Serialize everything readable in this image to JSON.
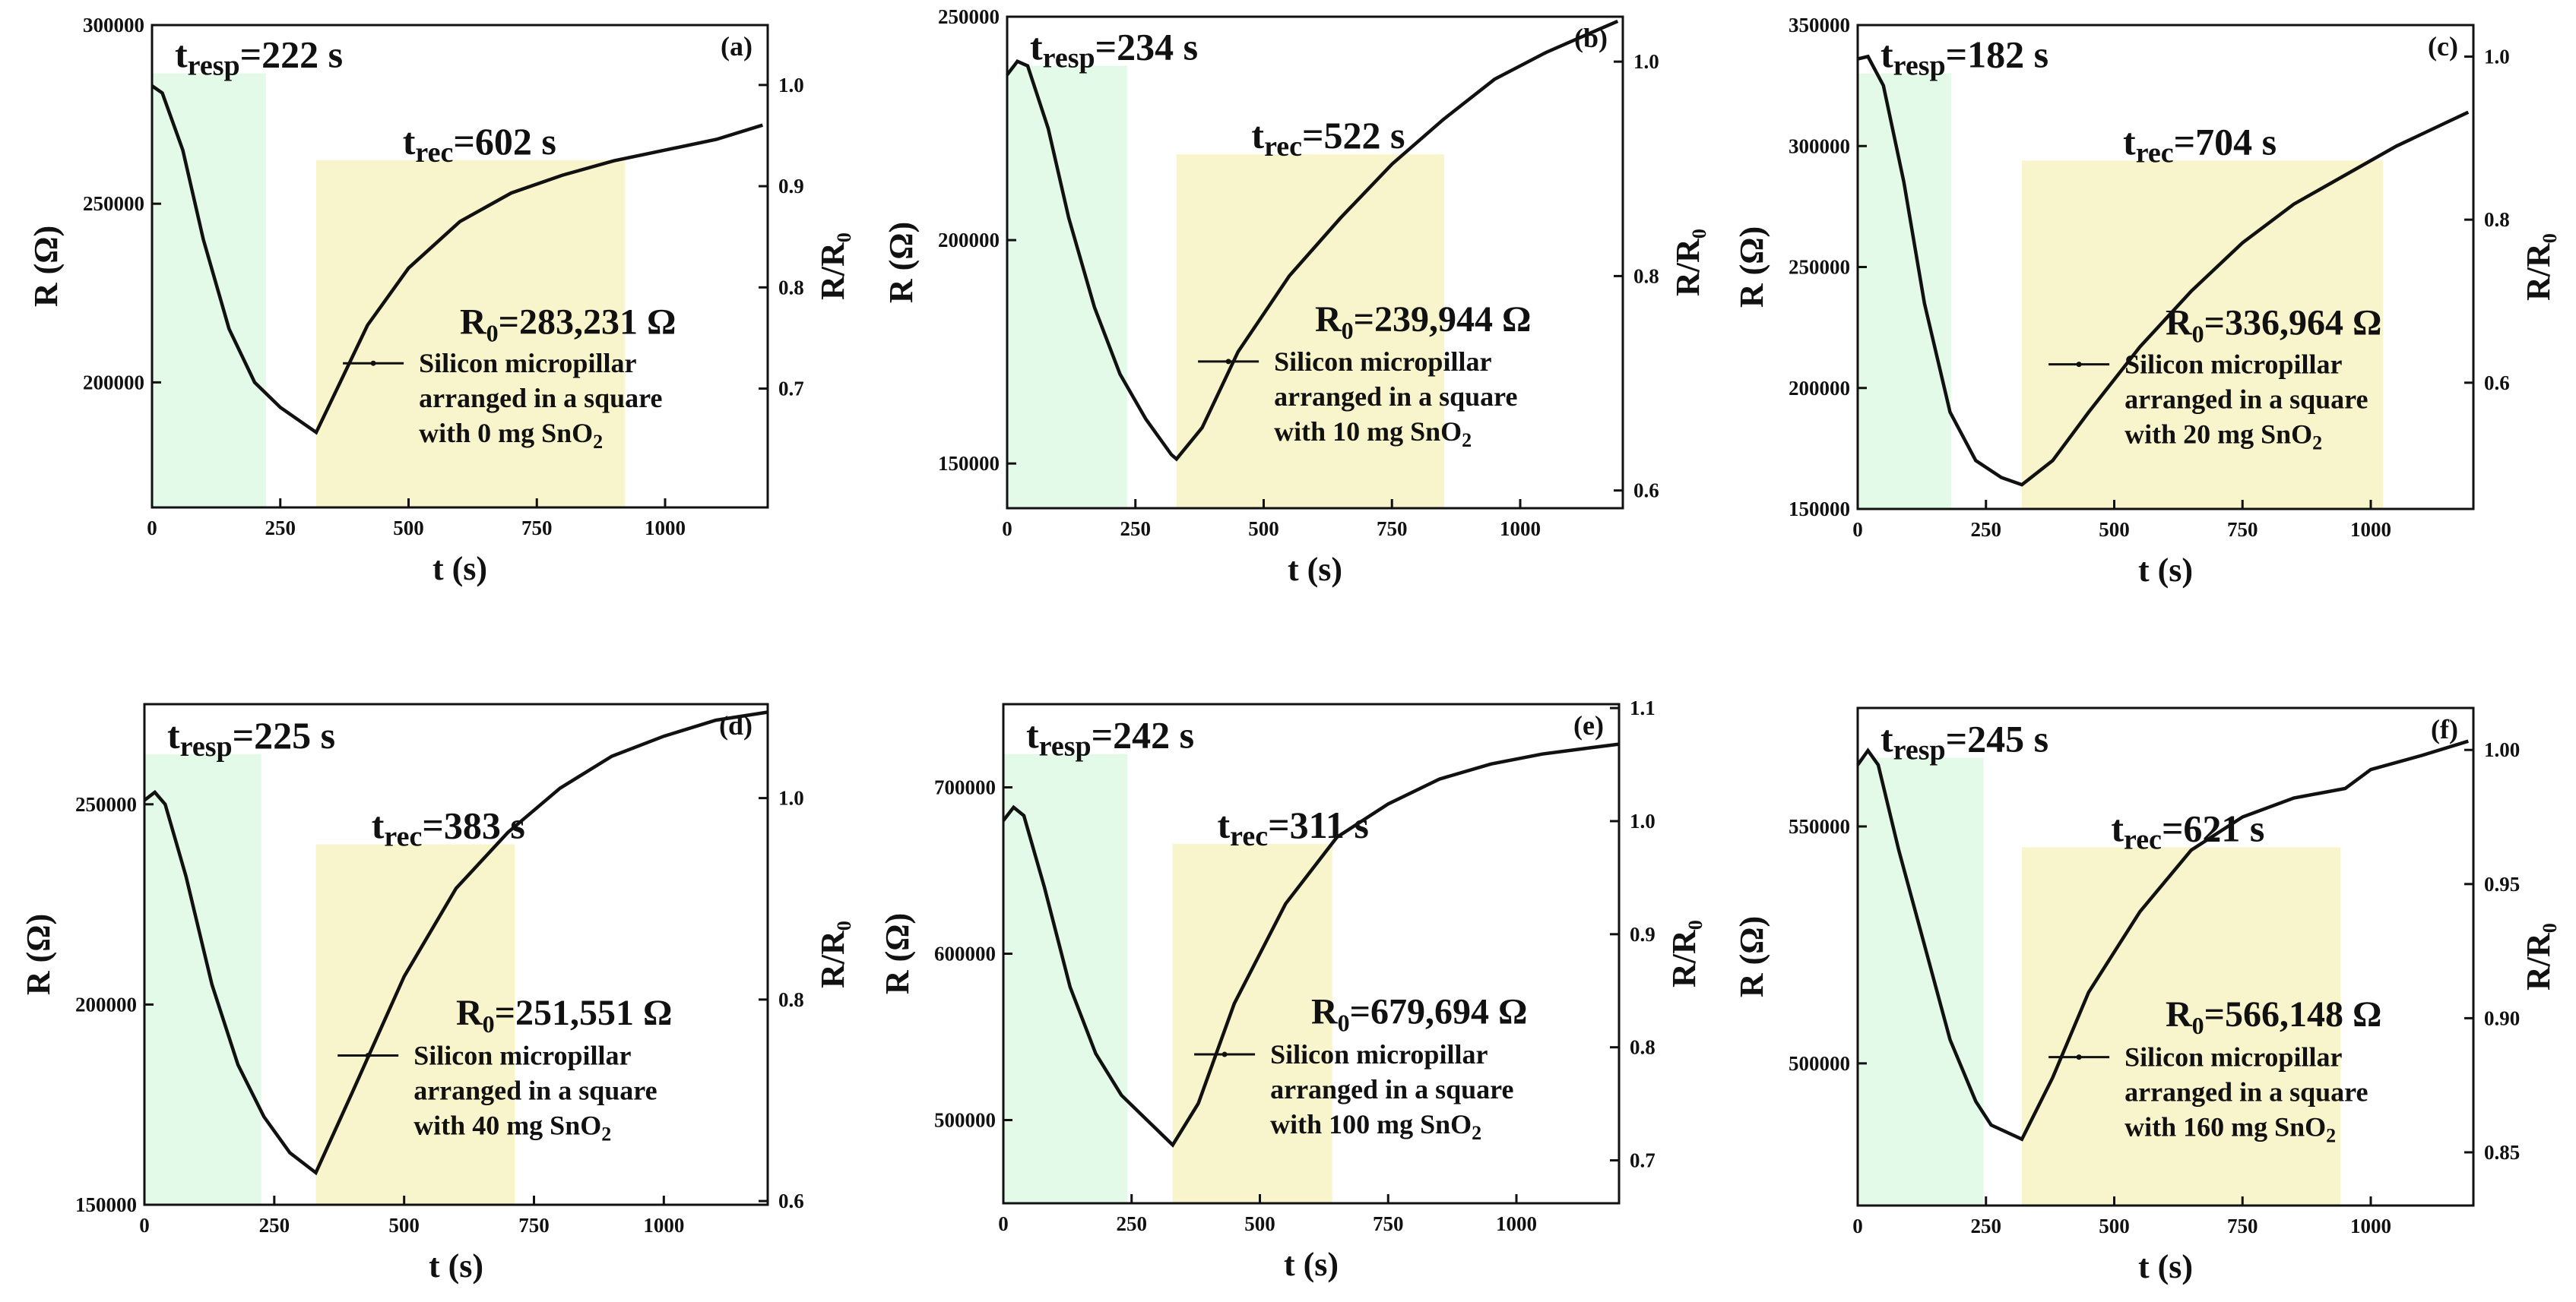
{
  "chart_data": [
    {
      "type": "line",
      "tag": "(a)",
      "xlabel": "t (s)",
      "ylabel": "R (Ω)",
      "y2label": "R/R₀",
      "xlim": [
        0,
        1200
      ],
      "ylim": [
        165000,
        300000
      ],
      "xticks": [
        0,
        250,
        500,
        750,
        1000
      ],
      "yticks": [
        200000,
        250000,
        300000
      ],
      "y2ticks": [
        0.7,
        0.8,
        0.9,
        1.0
      ],
      "y2tick_labels": [
        "0.7",
        "0.8",
        "0.9",
        "1.0"
      ],
      "R0_value": 283231,
      "R0_text": "283,231 Ω",
      "resp_label": "resp",
      "resp_value": "=222 s",
      "resp_band": [
        0,
        222
      ],
      "rec_label": "rec",
      "rec_value": "=602 s",
      "rec_band": [
        320,
        922
      ],
      "legend": [
        "Silicon micropillar",
        "arranged in a square",
        "with 0 mg SnO"
      ],
      "series": [
        {
          "name": "Silicon micropillar arranged in a square with 0 mg SnO2",
          "x": [
            0,
            20,
            60,
            100,
            150,
            200,
            250,
            300,
            320,
            360,
            420,
            500,
            600,
            700,
            800,
            900,
            1000,
            1100,
            1190
          ],
          "y": [
            283000,
            281000,
            265000,
            240000,
            215000,
            200000,
            193000,
            188000,
            186000,
            198000,
            216000,
            232000,
            245000,
            253000,
            258000,
            262000,
            265000,
            268000,
            272000
          ]
        }
      ]
    },
    {
      "type": "line",
      "tag": "(b)",
      "xlabel": "t (s)",
      "ylabel": "R (Ω)",
      "y2label": "R/R₀",
      "xlim": [
        0,
        1200
      ],
      "ylim": [
        140000,
        250000
      ],
      "xticks": [
        0,
        250,
        500,
        750,
        1000
      ],
      "yticks": [
        150000,
        200000,
        250000
      ],
      "y2ticks": [
        0.6,
        0.8,
        1.0
      ],
      "y2tick_labels": [
        "0.6",
        "0.8",
        "1.0"
      ],
      "R0_value": 239944,
      "R0_text": "239,944 Ω",
      "resp_label": "resp",
      "resp_value": "=234 s",
      "resp_band": [
        0,
        234
      ],
      "rec_label": "rec",
      "rec_value": "=522 s",
      "rec_band": [
        330,
        852
      ],
      "legend": [
        "Silicon micropillar",
        "arranged in a square",
        "with 10 mg SnO"
      ],
      "series": [
        {
          "name": "Silicon micropillar arranged in a square with 10 mg SnO2",
          "x": [
            0,
            20,
            40,
            80,
            120,
            170,
            220,
            270,
            320,
            330,
            380,
            450,
            550,
            650,
            750,
            850,
            950,
            1050,
            1150,
            1190
          ],
          "y": [
            237000,
            240000,
            239000,
            225000,
            205000,
            185000,
            170000,
            160000,
            152000,
            151000,
            158000,
            175000,
            192000,
            205000,
            217000,
            227000,
            236000,
            242000,
            247000,
            249000
          ]
        }
      ]
    },
    {
      "type": "line",
      "tag": "(c)",
      "xlabel": "t (s)",
      "ylabel": "R (Ω)",
      "y2label": "R/R₀",
      "xlim": [
        0,
        1200
      ],
      "ylim": [
        150000,
        350000
      ],
      "xticks": [
        0,
        250,
        500,
        750,
        1000
      ],
      "yticks": [
        150000,
        200000,
        250000,
        300000,
        350000
      ],
      "y2ticks": [
        0.6,
        0.8,
        1.0
      ],
      "y2tick_labels": [
        "0.6",
        "0.8",
        "1.0"
      ],
      "R0_value": 336964,
      "R0_text": "336,964 Ω",
      "resp_label": "resp",
      "resp_value": "=182 s",
      "resp_band": [
        0,
        182
      ],
      "rec_label": "rec",
      "rec_value": "=704 s",
      "rec_band": [
        320,
        1024
      ],
      "legend": [
        "Silicon micropillar",
        "arranged in a square",
        "with 20 mg SnO"
      ],
      "series": [
        {
          "name": "Silicon micropillar arranged in a square with 20 mg SnO2",
          "x": [
            0,
            20,
            50,
            90,
            130,
            180,
            230,
            280,
            320,
            380,
            450,
            550,
            650,
            750,
            850,
            950,
            1050,
            1150,
            1190
          ],
          "y": [
            336000,
            337000,
            325000,
            285000,
            235000,
            190000,
            170000,
            163000,
            160000,
            170000,
            190000,
            217000,
            240000,
            260000,
            276000,
            288000,
            300000,
            310000,
            314000
          ]
        }
      ]
    },
    {
      "type": "line",
      "tag": "(d)",
      "xlabel": "t (s)",
      "ylabel": "R (Ω)",
      "y2label": "R/R₀",
      "xlim": [
        0,
        1200
      ],
      "ylim": [
        150000,
        275000
      ],
      "xticks": [
        0,
        250,
        500,
        750,
        1000
      ],
      "yticks": [
        150000,
        200000,
        250000
      ],
      "y2ticks": [
        0.6,
        0.8,
        1.0
      ],
      "y2tick_labels": [
        "0.6",
        "0.8",
        "1.0"
      ],
      "R0_value": 251551,
      "R0_text": "251,551 Ω",
      "resp_label": "resp",
      "resp_value": "=225 s",
      "resp_band": [
        0,
        225
      ],
      "rec_label": "rec",
      "rec_value": "=383 s",
      "rec_band": [
        330,
        713
      ],
      "legend": [
        "Silicon micropillar",
        "arranged in a square",
        "with 40 mg SnO"
      ],
      "series": [
        {
          "name": "Silicon micropillar arranged in a square with 40 mg SnO2",
          "x": [
            0,
            20,
            40,
            80,
            130,
            180,
            230,
            280,
            320,
            330,
            400,
            500,
            600,
            700,
            800,
            900,
            1000,
            1100,
            1200
          ],
          "y": [
            251000,
            253000,
            250000,
            232000,
            205000,
            185000,
            172000,
            163000,
            159000,
            158000,
            178000,
            207000,
            229000,
            243000,
            254000,
            262000,
            267000,
            271000,
            273000
          ]
        }
      ]
    },
    {
      "type": "line",
      "tag": "(e)",
      "xlabel": "t (s)",
      "ylabel": "R (Ω)",
      "y2label": "R/R₀",
      "xlim": [
        0,
        1200
      ],
      "ylim": [
        450000,
        750000
      ],
      "xticks": [
        0,
        250,
        500,
        750,
        1000
      ],
      "yticks": [
        500000,
        600000,
        700000
      ],
      "y2ticks": [
        0.7,
        0.8,
        0.9,
        1.0,
        1.1
      ],
      "y2tick_labels": [
        "0.7",
        "0.8",
        "0.9",
        "1.0",
        "1.1"
      ],
      "R0_value": 679694,
      "R0_text": "679,694 Ω",
      "resp_label": "resp",
      "resp_value": "=242 s",
      "resp_band": [
        0,
        242
      ],
      "rec_label": "rec",
      "rec_value": "=311 s",
      "rec_band": [
        330,
        641
      ],
      "legend": [
        "Silicon micropillar",
        "arranged in a square",
        "with 100 mg SnO"
      ],
      "series": [
        {
          "name": "Silicon micropillar arranged in a square with 100 mg SnO2",
          "x": [
            0,
            20,
            40,
            80,
            130,
            180,
            230,
            280,
            330,
            380,
            450,
            550,
            650,
            750,
            850,
            950,
            1050,
            1150,
            1200
          ],
          "y": [
            680000,
            688000,
            683000,
            640000,
            580000,
            540000,
            515000,
            500000,
            485000,
            510000,
            570000,
            630000,
            670000,
            690000,
            705000,
            714000,
            720000,
            724000,
            726000
          ]
        }
      ]
    },
    {
      "type": "line",
      "tag": "(f)",
      "xlabel": "t (s)",
      "ylabel": "R (Ω)",
      "y2label": "R/R₀",
      "xlim": [
        0,
        1200
      ],
      "ylim": [
        470000,
        575000
      ],
      "xticks": [
        0,
        250,
        500,
        750,
        1000
      ],
      "yticks": [
        500000,
        550000
      ],
      "y2ticks": [
        0.85,
        0.9,
        0.95,
        1.0
      ],
      "y2tick_labels": [
        "0.85",
        "0.90",
        "0.95",
        "1.00"
      ],
      "R0_value": 566148,
      "R0_text": "566,148 Ω",
      "resp_label": "resp",
      "resp_value": "=245 s",
      "resp_band": [
        0,
        245
      ],
      "rec_label": "rec",
      "rec_value": "=621 s",
      "rec_band": [
        320,
        941
      ],
      "legend": [
        "Silicon micropillar",
        "arranged in a square",
        "with 160 mg SnO"
      ],
      "series": [
        {
          "name": "Silicon micropillar arranged in a square with 160 mg SnO2",
          "x": [
            0,
            20,
            40,
            80,
            130,
            180,
            230,
            260,
            320,
            380,
            450,
            550,
            650,
            750,
            850,
            950,
            1000,
            1100,
            1190
          ],
          "y": [
            563000,
            566000,
            563000,
            545000,
            525000,
            505000,
            492000,
            487000,
            484000,
            497000,
            515000,
            532000,
            545000,
            552000,
            556000,
            558000,
            562000,
            565000,
            568000
          ]
        }
      ]
    }
  ]
}
